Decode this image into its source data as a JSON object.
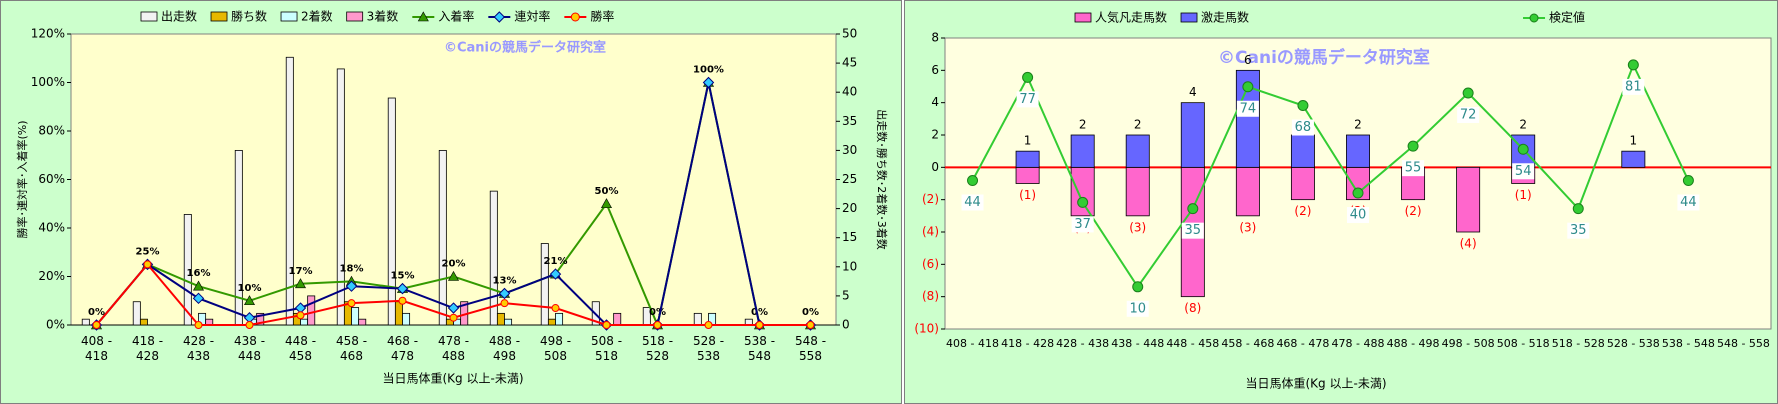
{
  "chart_data": [
    {
      "type": "bar",
      "annotation": "©Caniの競馬データ研究室",
      "xlabel": "当日馬体重(Kg 以上-未満)",
      "ylabel": "勝率･連対率･入着率(%)",
      "y2label": "出走数･勝ち数･2着数･3着数",
      "categories": [
        "408 - 418",
        "418 - 428",
        "428 - 438",
        "438 - 448",
        "448 - 458",
        "458 - 468",
        "468 - 478",
        "478 - 488",
        "488 - 498",
        "498 - 508",
        "508 - 518",
        "518 - 528",
        "528 - 538",
        "538 - 548",
        "548 - 558"
      ],
      "ylim": [
        0,
        120
      ],
      "yticks": [
        {
          "value": 0,
          "label": "0%"
        },
        {
          "value": 20,
          "label": "20%"
        },
        {
          "value": 40,
          "label": "40%"
        },
        {
          "value": 60,
          "label": "60%"
        },
        {
          "value": 80,
          "label": "80%"
        },
        {
          "value": 100,
          "label": "100%"
        },
        {
          "value": 120,
          "label": "120%"
        }
      ],
      "y2lim": [
        0,
        50
      ],
      "y2ticks": [
        0,
        5,
        10,
        15,
        20,
        25,
        30,
        35,
        40,
        45,
        50
      ],
      "bar_layout": "grouped",
      "series": [
        {
          "name": "出走数",
          "type": "bar",
          "axis": "y2",
          "color": "#f2f2f2",
          "values": [
            1,
            4,
            19,
            30,
            46,
            44,
            39,
            30,
            23,
            14,
            4,
            3,
            2,
            1,
            0
          ]
        },
        {
          "name": "勝ち数",
          "type": "bar",
          "axis": "y2",
          "color": "#e6b800",
          "values": [
            0,
            1,
            0,
            0,
            2,
            4,
            4,
            1,
            2,
            1,
            0,
            0,
            0,
            0,
            0
          ]
        },
        {
          "name": "2着数",
          "type": "bar",
          "axis": "y2",
          "color": "#ccffff",
          "values": [
            0,
            0,
            2,
            1,
            1,
            3,
            2,
            1,
            1,
            2,
            0,
            0,
            2,
            0,
            0
          ]
        },
        {
          "name": "3着数",
          "type": "bar",
          "axis": "y2",
          "color": "#ff99cc",
          "values": [
            0,
            0,
            1,
            2,
            5,
            1,
            0,
            4,
            0,
            0,
            2,
            0,
            0,
            0,
            0
          ]
        },
        {
          "name": "入着率",
          "type": "line",
          "color": "#339900",
          "marker": "triangle",
          "values": [
            0,
            25,
            16,
            10,
            17,
            18,
            15,
            20,
            13,
            21,
            50,
            0,
            100,
            0,
            0
          ],
          "value_labels": [
            "0%",
            "25%",
            "16%",
            "10%",
            "17%",
            "18%",
            "15%",
            "20%",
            "13%",
            "21%",
            "50%",
            "0%",
            "100%",
            "0%",
            "0%"
          ]
        },
        {
          "name": "連対率",
          "type": "line",
          "color": "#000080",
          "marker": "diamond",
          "values": [
            0,
            25,
            11,
            3,
            7,
            16,
            15,
            7,
            13,
            21,
            0,
            0,
            100,
            0,
            0
          ]
        },
        {
          "name": "勝率",
          "type": "line",
          "color": "#ff0000",
          "marker": "circle",
          "values": [
            0,
            25,
            0,
            0,
            4,
            9,
            10,
            3,
            9,
            7,
            0,
            0,
            0,
            0,
            0
          ]
        }
      ]
    },
    {
      "type": "bar",
      "annotation": "©Caniの競馬データ研究室",
      "xlabel": "当日馬体重(Kg 以上-未満)",
      "categories": [
        "408 - 418",
        "418 - 428",
        "428 - 438",
        "438 - 448",
        "448 - 458",
        "458 - 468",
        "468 - 478",
        "478 - 488",
        "488 - 498",
        "498 - 508",
        "508 - 518",
        "518 - 528",
        "528 - 538",
        "538 - 548",
        "548 - 558"
      ],
      "ylim": [
        -10,
        8
      ],
      "yticks": [
        8,
        6,
        4,
        2,
        0,
        {
          "value": -2,
          "label": "(2)"
        },
        {
          "value": -4,
          "label": "(4)"
        },
        {
          "value": -6,
          "label": "(6)"
        },
        {
          "value": -8,
          "label": "(8)"
        },
        {
          "value": -10,
          "label": "(10)"
        }
      ],
      "y2lim": [
        -3.5,
        89.6
      ],
      "bar_layout": "stacked",
      "zero_line": "#ff0000",
      "series": [
        {
          "name": "人気凡走馬数",
          "type": "bar",
          "color": "#ff66cc",
          "values": [
            0,
            -1,
            -3,
            -3,
            -8,
            -3,
            -2,
            -2,
            -2,
            -4,
            -1,
            0,
            0,
            0,
            0
          ],
          "value_labels": [
            null,
            "(1)",
            "(3)",
            "(3)",
            "(8)",
            "(3)",
            "(2)",
            "(2)",
            "(2)",
            "(4)",
            "(1)",
            null,
            null,
            null,
            null
          ]
        },
        {
          "name": "激走馬数",
          "type": "bar",
          "color": "#6666ff",
          "values": [
            0,
            1,
            2,
            2,
            4,
            6,
            2,
            2,
            0,
            0,
            2,
            0,
            1,
            0,
            0
          ],
          "value_labels": [
            null,
            "1",
            "2",
            "2",
            "4",
            "6",
            "2",
            "2",
            null,
            null,
            "2",
            null,
            "1",
            null,
            null
          ]
        },
        {
          "name": "検定値",
          "type": "line",
          "axis": "y2",
          "color": "#33cc33",
          "marker": "circle",
          "values": [
            44,
            77,
            37,
            10,
            35,
            74,
            68,
            40,
            55,
            72,
            54,
            35,
            81,
            44,
            null
          ],
          "value_labels": [
            "44",
            "77",
            "37",
            "10",
            "35",
            "74",
            "68",
            "40",
            "55",
            "72",
            "54",
            "35",
            "81",
            "44",
            null
          ]
        }
      ]
    }
  ]
}
